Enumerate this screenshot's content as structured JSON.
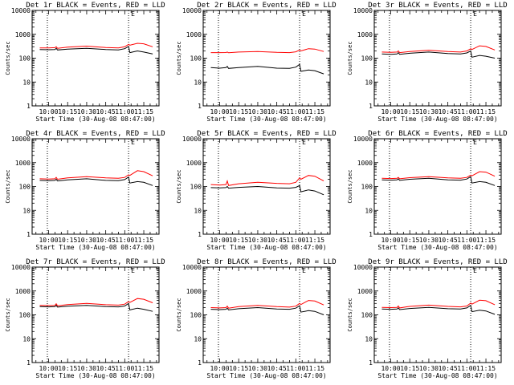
{
  "figure": {
    "series_colors": {
      "events": "#000000",
      "lld": "#ff0000"
    },
    "marker_label": "E",
    "x_axis_title": "Start Time (30-Aug-08 08:47:00)",
    "y_axis_title": "Counts/sec",
    "panel_order": [
      "1r",
      "2r",
      "3r",
      "4r",
      "5r",
      "6r",
      "7r",
      "8r",
      "9r"
    ]
  },
  "chart_data": [
    {
      "type": "line",
      "title": "Det 1r BLACK = Events, RED = LLD",
      "xlabel": "Start Time (30-Aug-08 08:47:00)",
      "ylabel": "Counts/sec",
      "x_ticks": [
        "10:00",
        "10:15",
        "10:30",
        "10:45",
        "11:00",
        "11:15"
      ],
      "y_ticks": [
        "1",
        "10",
        "100",
        "1000",
        "10000"
      ],
      "y_scale": "log",
      "ylim": [
        1,
        10000
      ],
      "vlines_at_time": [
        "09:59",
        "11:03",
        "11:27"
      ],
      "marker_label": "E",
      "x": [
        "09:53",
        "10:00",
        "10:05",
        "10:06",
        "10:07",
        "10:15",
        "10:30",
        "10:45",
        "10:55",
        "11:00",
        "11:03",
        "11:04",
        "11:10",
        "11:15",
        "11:22"
      ],
      "series": [
        {
          "name": "Events",
          "color": "#000000",
          "values": [
            230,
            225,
            230,
            260,
            220,
            240,
            260,
            230,
            220,
            250,
            310,
            170,
            200,
            180,
            150
          ]
        },
        {
          "name": "LLD",
          "color": "#ff0000",
          "values": [
            270,
            270,
            275,
            300,
            260,
            290,
            320,
            280,
            270,
            300,
            380,
            350,
            420,
            400,
            300
          ]
        }
      ]
    },
    {
      "type": "line",
      "title": "Det 2r BLACK = Events, RED = LLD",
      "xlabel": "Start Time (30-Aug-08 08:47:00)",
      "ylabel": "Counts/sec",
      "x_ticks": [
        "10:00",
        "10:15",
        "10:30",
        "10:45",
        "11:00",
        "11:15"
      ],
      "y_ticks": [
        "1",
        "10",
        "100",
        "1000",
        "10000"
      ],
      "y_scale": "log",
      "ylim": [
        1,
        10000
      ],
      "vlines_at_time": [
        "09:59",
        "11:03",
        "11:27"
      ],
      "marker_label": "E",
      "x": [
        "09:53",
        "10:00",
        "10:05",
        "10:06",
        "10:07",
        "10:15",
        "10:30",
        "10:45",
        "10:55",
        "11:00",
        "11:03",
        "11:04",
        "11:10",
        "11:15",
        "11:22"
      ],
      "series": [
        {
          "name": "Events",
          "color": "#000000",
          "values": [
            40,
            38,
            40,
            45,
            37,
            40,
            45,
            38,
            37,
            42,
            55,
            28,
            32,
            30,
            22
          ]
        },
        {
          "name": "LLD",
          "color": "#ff0000",
          "values": [
            170,
            170,
            172,
            180,
            168,
            180,
            190,
            175,
            170,
            185,
            220,
            200,
            250,
            240,
            190
          ]
        }
      ]
    },
    {
      "type": "line",
      "title": "Det 3r BLACK = Events, RED = LLD",
      "xlabel": "Start Time (30-Aug-08 08:47:00)",
      "ylabel": "Counts/sec",
      "x_ticks": [
        "10:00",
        "10:15",
        "10:30",
        "10:45",
        "11:00",
        "11:15"
      ],
      "y_ticks": [
        "1",
        "10",
        "100",
        "1000",
        "10000"
      ],
      "y_scale": "log",
      "ylim": [
        1,
        10000
      ],
      "vlines_at_time": [
        "09:59",
        "11:03",
        "11:27"
      ],
      "marker_label": "E",
      "x": [
        "09:53",
        "10:00",
        "10:05",
        "10:06",
        "10:07",
        "10:15",
        "10:30",
        "10:45",
        "10:55",
        "11:00",
        "11:03",
        "11:04",
        "11:10",
        "11:15",
        "11:22"
      ],
      "series": [
        {
          "name": "Events",
          "color": "#000000",
          "values": [
            150,
            145,
            150,
            170,
            145,
            160,
            180,
            155,
            150,
            165,
            200,
            110,
            130,
            120,
            100
          ]
        },
        {
          "name": "LLD",
          "color": "#ff0000",
          "values": [
            180,
            175,
            180,
            200,
            170,
            190,
            215,
            190,
            180,
            200,
            250,
            230,
            330,
            310,
            220
          ]
        }
      ]
    },
    {
      "type": "line",
      "title": "Det 4r BLACK = Events, RED = LLD",
      "xlabel": "Start Time (30-Aug-08 08:47:00)",
      "ylabel": "Counts/sec",
      "x_ticks": [
        "10:00",
        "10:15",
        "10:30",
        "10:45",
        "11:00",
        "11:15"
      ],
      "y_ticks": [
        "1",
        "10",
        "100",
        "1000",
        "10000"
      ],
      "y_scale": "log",
      "ylim": [
        1,
        10000
      ],
      "vlines_at_time": [
        "09:59",
        "11:03",
        "11:27"
      ],
      "marker_label": "E",
      "x": [
        "09:53",
        "10:00",
        "10:05",
        "10:06",
        "10:07",
        "10:15",
        "10:30",
        "10:45",
        "10:55",
        "11:00",
        "11:03",
        "11:04",
        "11:10",
        "11:15",
        "11:22"
      ],
      "series": [
        {
          "name": "Events",
          "color": "#000000",
          "values": [
            180,
            175,
            180,
            200,
            170,
            190,
            210,
            180,
            175,
            195,
            250,
            140,
            160,
            150,
            110
          ]
        },
        {
          "name": "LLD",
          "color": "#ff0000",
          "values": [
            210,
            205,
            210,
            240,
            200,
            230,
            260,
            230,
            220,
            240,
            310,
            290,
            460,
            420,
            280
          ]
        }
      ]
    },
    {
      "type": "line",
      "title": "Det 5r BLACK = Events, RED = LLD",
      "xlabel": "Start Time (30-Aug-08 08:47:00)",
      "ylabel": "Counts/sec",
      "x_ticks": [
        "10:00",
        "10:15",
        "10:30",
        "10:45",
        "11:00",
        "11:15"
      ],
      "y_ticks": [
        "1",
        "10",
        "100",
        "1000",
        "10000"
      ],
      "y_scale": "log",
      "ylim": [
        1,
        10000
      ],
      "vlines_at_time": [
        "09:59",
        "11:03",
        "11:27"
      ],
      "marker_label": "E",
      "x": [
        "09:53",
        "10:00",
        "10:05",
        "10:06",
        "10:07",
        "10:15",
        "10:30",
        "10:45",
        "10:55",
        "11:00",
        "11:03",
        "11:04",
        "11:10",
        "11:15",
        "11:22"
      ],
      "series": [
        {
          "name": "Events",
          "color": "#000000",
          "values": [
            90,
            88,
            90,
            100,
            85,
            92,
            100,
            88,
            85,
            92,
            110,
            60,
            72,
            65,
            45
          ]
        },
        {
          "name": "LLD",
          "color": "#ff0000",
          "values": [
            120,
            115,
            120,
            170,
            110,
            130,
            150,
            135,
            130,
            150,
            230,
            200,
            290,
            270,
            170
          ]
        }
      ]
    },
    {
      "type": "line",
      "title": "Det 6r BLACK = Events, RED = LLD",
      "xlabel": "Start Time (30-Aug-08 08:47:00)",
      "ylabel": "Counts/sec",
      "x_ticks": [
        "10:00",
        "10:15",
        "10:30",
        "10:45",
        "11:00",
        "11:15"
      ],
      "y_ticks": [
        "1",
        "10",
        "100",
        "1000",
        "10000"
      ],
      "y_scale": "log",
      "ylim": [
        1,
        10000
      ],
      "vlines_at_time": [
        "09:59",
        "11:03",
        "11:27"
      ],
      "marker_label": "E",
      "x": [
        "09:53",
        "10:00",
        "10:05",
        "10:06",
        "10:07",
        "10:15",
        "10:30",
        "10:45",
        "10:55",
        "11:00",
        "11:03",
        "11:04",
        "11:10",
        "11:15",
        "11:22"
      ],
      "series": [
        {
          "name": "Events",
          "color": "#000000",
          "values": [
            190,
            185,
            190,
            210,
            180,
            200,
            220,
            190,
            185,
            205,
            260,
            140,
            160,
            150,
            110
          ]
        },
        {
          "name": "LLD",
          "color": "#ff0000",
          "values": [
            220,
            215,
            220,
            240,
            210,
            235,
            260,
            230,
            220,
            240,
            300,
            280,
            420,
            400,
            270
          ]
        }
      ]
    },
    {
      "type": "line",
      "title": "Det 7r BLACK = Events, RED = LLD",
      "xlabel": "Start Time (30-Aug-08 08:47:00)",
      "ylabel": "Counts/sec",
      "x_ticks": [
        "10:00",
        "10:15",
        "10:30",
        "10:45",
        "11:00",
        "11:15"
      ],
      "y_ticks": [
        "1",
        "10",
        "100",
        "1000",
        "10000"
      ],
      "y_scale": "log",
      "ylim": [
        1,
        10000
      ],
      "vlines_at_time": [
        "09:59",
        "11:03",
        "11:27"
      ],
      "marker_label": "E",
      "x": [
        "09:53",
        "10:00",
        "10:05",
        "10:06",
        "10:07",
        "10:15",
        "10:30",
        "10:45",
        "10:55",
        "11:00",
        "11:03",
        "11:04",
        "11:10",
        "11:15",
        "11:22"
      ],
      "series": [
        {
          "name": "Events",
          "color": "#000000",
          "values": [
            220,
            215,
            220,
            250,
            210,
            230,
            250,
            220,
            215,
            235,
            300,
            160,
            190,
            170,
            140
          ]
        },
        {
          "name": "LLD",
          "color": "#ff0000",
          "values": [
            250,
            245,
            250,
            290,
            240,
            270,
            300,
            265,
            255,
            280,
            360,
            330,
            480,
            450,
            320
          ]
        }
      ]
    },
    {
      "type": "line",
      "title": "Det 8r BLACK = Events, RED = LLD",
      "xlabel": "Start Time (30-Aug-08 08:47:00)",
      "ylabel": "Counts/sec",
      "x_ticks": [
        "10:00",
        "10:15",
        "10:30",
        "10:45",
        "11:00",
        "11:15"
      ],
      "y_ticks": [
        "1",
        "10",
        "100",
        "1000",
        "10000"
      ],
      "y_scale": "log",
      "ylim": [
        1,
        10000
      ],
      "vlines_at_time": [
        "09:59",
        "11:03",
        "11:27"
      ],
      "marker_label": "E",
      "x": [
        "09:53",
        "10:00",
        "10:05",
        "10:06",
        "10:07",
        "10:15",
        "10:30",
        "10:45",
        "10:55",
        "11:00",
        "11:03",
        "11:04",
        "11:10",
        "11:15",
        "11:22"
      ],
      "series": [
        {
          "name": "Events",
          "color": "#000000",
          "values": [
            170,
            165,
            170,
            190,
            160,
            180,
            200,
            175,
            170,
            190,
            240,
            130,
            150,
            140,
            100
          ]
        },
        {
          "name": "LLD",
          "color": "#ff0000",
          "values": [
            200,
            195,
            200,
            230,
            190,
            220,
            250,
            220,
            210,
            230,
            300,
            270,
            400,
            380,
            260
          ]
        }
      ]
    },
    {
      "type": "line",
      "title": "Det 9r BLACK = Events, RED = LLD",
      "xlabel": "Start Time (30-Aug-08 08:47:00)",
      "ylabel": "Counts/sec",
      "x_ticks": [
        "10:00",
        "10:15",
        "10:30",
        "10:45",
        "11:00",
        "11:15"
      ],
      "y_ticks": [
        "1",
        "10",
        "100",
        "1000",
        "10000"
      ],
      "y_scale": "log",
      "ylim": [
        1,
        10000
      ],
      "vlines_at_time": [
        "09:59",
        "11:03",
        "11:27"
      ],
      "marker_label": "E",
      "x": [
        "09:53",
        "10:00",
        "10:05",
        "10:06",
        "10:07",
        "10:15",
        "10:30",
        "10:45",
        "10:55",
        "11:00",
        "11:03",
        "11:04",
        "11:10",
        "11:15",
        "11:22"
      ],
      "series": [
        {
          "name": "Events",
          "color": "#000000",
          "values": [
            175,
            170,
            175,
            195,
            165,
            185,
            205,
            180,
            175,
            195,
            250,
            135,
            155,
            145,
            105
          ]
        },
        {
          "name": "LLD",
          "color": "#ff0000",
          "values": [
            205,
            200,
            205,
            235,
            195,
            225,
            255,
            225,
            215,
            235,
            310,
            280,
            410,
            390,
            265
          ]
        }
      ]
    }
  ]
}
